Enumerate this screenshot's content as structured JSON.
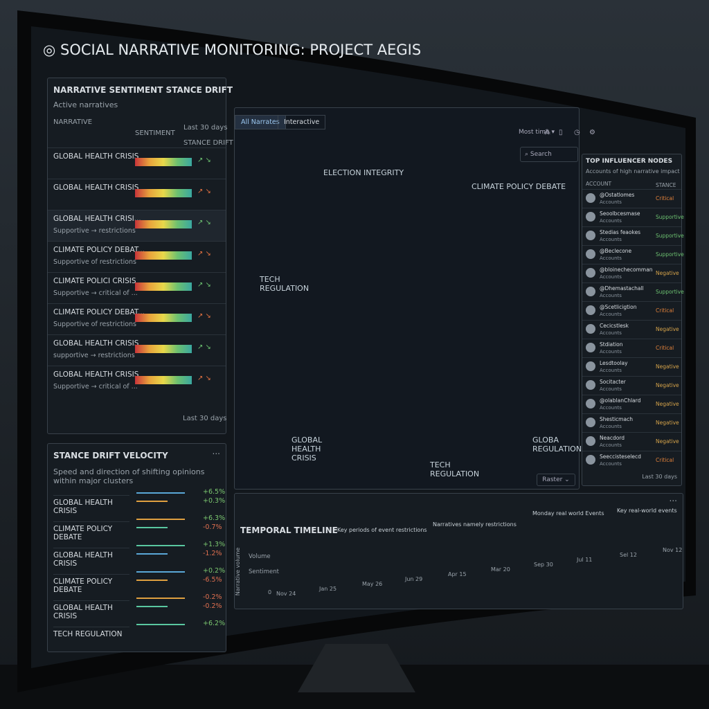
{
  "header": {
    "title": "SOCIAL NARRATIVE MONITORING: PROJECT AEGIS"
  },
  "sentiment_panel": {
    "title": "NARRATIVE SENTIMENT STANCE DRIFT",
    "subtitle": "Active narratives",
    "period": "Last 30 days",
    "columns": [
      "NARRATIVE",
      "SENTIMENT",
      "STANCE DRIFT"
    ],
    "rows": [
      {
        "name": "GLOBAL HEALTH CRISIS"
      },
      {
        "name": "GLOBAL HEALTH CRISIS"
      },
      {
        "name": "GLOBAL HEALTH CRISI...",
        "detail": "Supportive → restrictions"
      },
      {
        "name": "CLIMATE POLICY DEBAT...",
        "detail": "Supportive of restrictions"
      },
      {
        "name": "CLIMATE POLICI CRISIS",
        "detail": "Supportive → critical of ..."
      },
      {
        "name": "CLIMATE POLICY DEBAT...",
        "detail": "Supportive of restrictions"
      },
      {
        "name": "GLOBAL HEALTH CRISIS",
        "detail": "supportive → restrictions"
      },
      {
        "name": "GLOBAL HEALTH CRISIS",
        "detail": "Supportive → critical of ..."
      }
    ],
    "footer": "Last 30 days"
  },
  "velocity_panel": {
    "title": "STANCE DRIFT VELOCITY",
    "menu": "...",
    "description": "Speed and direction of shifting opinions within major clusters",
    "rows": [
      {
        "name": "GLOBAL HEALTH CRISIS",
        "changes": [
          "+6.5%",
          "+0.3%"
        ]
      },
      {
        "name": "CLIMATE POLICY DEBATE",
        "changes": [
          "+6.3%",
          "-0.7%"
        ]
      },
      {
        "name": "GLOBAL HEALTH CRISIS",
        "changes": [
          "+1.3%",
          "-1.2%"
        ]
      },
      {
        "name": "CLIMATE POLICY DEBATE",
        "changes": [
          "+0.2%",
          "-6.5%"
        ]
      },
      {
        "name": "GLOBAL HEALTH CRISIS",
        "changes": [
          "-0.2%",
          "-0.2%"
        ]
      },
      {
        "name": "TECH REGULATION",
        "changes": [
          "+6.2%"
        ]
      }
    ]
  },
  "network_panel": {
    "tabs": [
      "All Narrates",
      "Interactive"
    ],
    "time_filter": "Most time ▾",
    "search": "Search",
    "filter": "Raster ⌄",
    "clusters": [
      "ELECTION INTEGRITY",
      "CLIMATE POLICY DEBATE",
      "TECH REGULATION",
      "GLOBAL HEALTH CRISIS",
      "TECH REGULATION",
      "GLOBA REGULATION"
    ]
  },
  "influencer_panel": {
    "title": "TOP INFLUENCER NODES",
    "subtitle": "Accounts of high narrative impact",
    "columns": [
      "ACCOUNT",
      "STANCE"
    ],
    "rows": [
      {
        "handle": "@Ostatlomes",
        "type": "Accounts",
        "stance": "Critical"
      },
      {
        "handle": "Seoolbcesmase",
        "type": "Accounts",
        "stance": "Supportive"
      },
      {
        "handle": "Stedias feaokes",
        "type": "Accounts",
        "stance": "Supportive"
      },
      {
        "handle": "@Beclecone",
        "type": "Accounts",
        "stance": "Supportive"
      },
      {
        "handle": "@bloinechecomman",
        "type": "Accounts",
        "stance": "Negative"
      },
      {
        "handle": "@Dhemastachall",
        "type": "Accounts",
        "stance": "Supportive"
      },
      {
        "handle": "@Scetlicigtion",
        "type": "Accounts",
        "stance": "Critical"
      },
      {
        "handle": "Cecicstlesk",
        "type": "Accounts",
        "stance": "Negative"
      },
      {
        "handle": "Stdiation",
        "type": "Accounts",
        "stance": "Critical"
      },
      {
        "handle": "Lesdtoolay",
        "type": "Accounts",
        "stance": "Negative"
      },
      {
        "handle": "Socitacter",
        "type": "Accounts",
        "stance": "Negative"
      },
      {
        "handle": "@olablanChlard",
        "type": "Accounts",
        "stance": "Negative"
      },
      {
        "handle": "Shesticmach",
        "type": "Accounts",
        "stance": "Negative"
      },
      {
        "handle": "Neacdord",
        "type": "Accounts",
        "stance": "Negative"
      },
      {
        "handle": "Seeccisteselecd",
        "type": "Accounts",
        "stance": "Critical"
      }
    ],
    "footer": "Last 30 days"
  },
  "timeline_panel": {
    "title": "TEMPORAL TIMELINE",
    "menu": "...",
    "axis_label": "Narrative volume",
    "series_labels": [
      "Volume",
      "Sentiment"
    ],
    "zero": "0",
    "annotations": [
      "Key periods of event restrictions",
      "Narratives namely restrictions",
      "Monday real world Events",
      "Key real-world events"
    ],
    "dates": [
      "Nov 24",
      "Jan 25",
      "May 26",
      "Jun 29",
      "Apr 15",
      "Mar 20",
      "Sep 30",
      "Jul 11",
      "Sel 12",
      "Nov 12"
    ]
  }
}
